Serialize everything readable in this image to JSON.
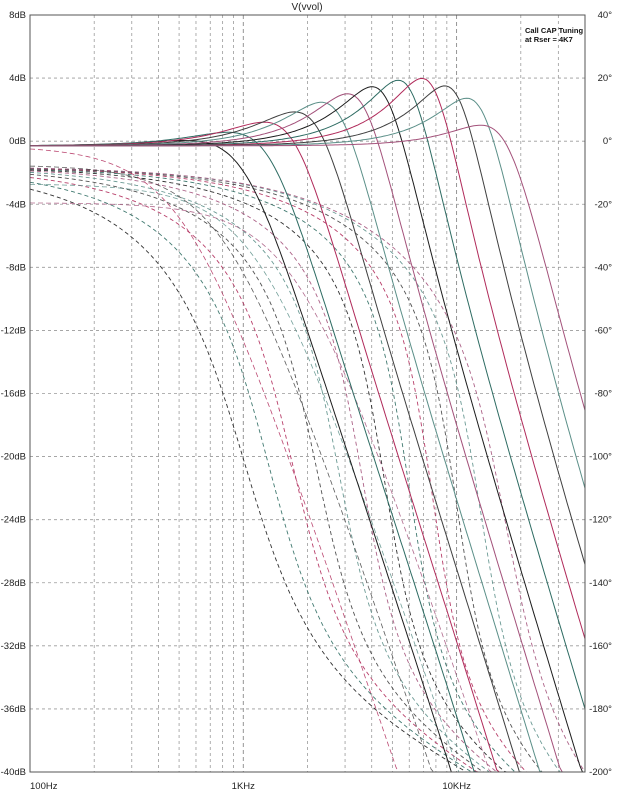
{
  "chart_data": {
    "type": "line",
    "title": "V(vvol)",
    "annotation": [
      "Call CAP Tuning",
      "at Rser = 4K7"
    ],
    "x_axis": {
      "scale": "log",
      "range": [
        100,
        40000
      ],
      "tick_labels": [
        {
          "value": 100,
          "label": "100Hz"
        },
        {
          "value": 1000,
          "label": "1KHz"
        },
        {
          "value": 10000,
          "label": "10KHz"
        }
      ]
    },
    "y_axis_left": {
      "unit": "dB",
      "range": [
        -40,
        8
      ],
      "tick_labels": [
        "8dB",
        "4dB",
        "0dB",
        "-4dB",
        "-8dB",
        "-12dB",
        "-16dB",
        "-20dB",
        "-24dB",
        "-28dB",
        "-32dB",
        "-36dB",
        "-40dB"
      ],
      "tick_values": [
        8,
        4,
        0,
        -4,
        -8,
        -12,
        -16,
        -20,
        -24,
        -28,
        -32,
        -36,
        -40
      ]
    },
    "y_axis_right": {
      "unit": "degrees",
      "range": [
        -200,
        40
      ],
      "tick_labels": [
        "40°",
        "20°",
        "0°",
        "-20°",
        "-40°",
        "-60°",
        "-80°",
        "-100°",
        "-120°",
        "-140°",
        "-160°",
        "-180°",
        "-200°"
      ],
      "tick_values": [
        40,
        20,
        0,
        -20,
        -40,
        -60,
        -80,
        -100,
        -120,
        -140,
        -160,
        -180,
        -200
      ]
    },
    "grid": true,
    "legend": "none",
    "line_styles": {
      "magnitude": "solid",
      "phase": "dashed"
    },
    "series_palette": [
      "#1c1c1c",
      "#2d6b62",
      "#b02a5a",
      "#3f3f3f",
      "#5b8f88",
      "#a3517a"
    ],
    "series_params": {
      "f0_hz": [
        1000,
        1300,
        1700,
        2200,
        2800,
        3600,
        4600,
        6000,
        7700,
        10000,
        13000,
        17000
      ],
      "peak_db": [
        -1.6,
        -0.6,
        0.4,
        1.3,
        2.1,
        2.8,
        3.4,
        4.0,
        4.3,
        4.0,
        3.4,
        1.6
      ]
    }
  }
}
